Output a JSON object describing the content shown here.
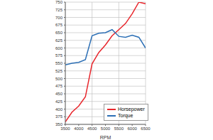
{
  "chart_data": {
    "type": "line",
    "x_label": "RPM",
    "x": [
      3500,
      3750,
      4000,
      4250,
      4500,
      4750,
      5000,
      5250,
      5500,
      5750,
      6000,
      6250,
      6500
    ],
    "series": [
      {
        "name": "Horsepower",
        "color": "#e8262c",
        "values": [
          358,
          390,
          410,
          440,
          548,
          585,
          610,
          640,
          660,
          680,
          712,
          750,
          745
        ]
      },
      {
        "name": "Torque",
        "color": "#2c6fb5",
        "values": [
          545,
          550,
          553,
          562,
          640,
          648,
          650,
          660,
          638,
          635,
          642,
          635,
          600
        ]
      }
    ],
    "xlim": [
      3500,
      6500
    ],
    "xticks": [
      3500,
      4000,
      4500,
      5000,
      5500,
      6000,
      6500
    ],
    "ylim": [
      350,
      750
    ],
    "yticks": [
      350,
      375,
      400,
      425,
      450,
      475,
      500,
      525,
      550,
      575,
      600,
      625,
      650,
      675,
      700,
      725,
      750
    ],
    "grid": true,
    "legend": "lower right"
  }
}
